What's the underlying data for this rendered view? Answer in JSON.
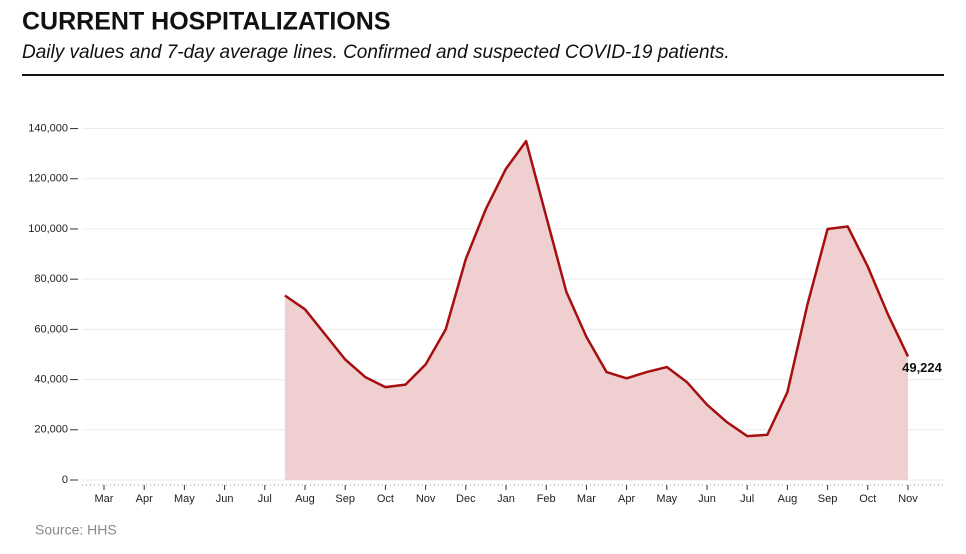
{
  "chart_data": {
    "type": "area-line",
    "title": "CURRENT HOSPITALIZATIONS",
    "subtitle": "Daily values and 7-day average lines. Confirmed and suspected COVID-19 patients.",
    "source": "Source: HHS",
    "categories": [
      "Mar",
      null,
      "Apr",
      null,
      "May",
      null,
      "Jun",
      null,
      "Jul",
      null,
      "Aug",
      null,
      "Sep",
      null,
      "Oct",
      null,
      "Nov",
      null,
      "Dec",
      null,
      "Jan",
      null,
      "Feb",
      null,
      "Mar",
      null,
      "Apr",
      null,
      "May",
      null,
      "Jun",
      null,
      "Jul",
      null,
      "Aug",
      null,
      "Sep",
      null,
      "Oct",
      null,
      "Nov"
    ],
    "series": [
      {
        "name": "7-day average",
        "color": "#a50f0f",
        "fill": "#efcfcf",
        "values": [
          null,
          null,
          null,
          null,
          null,
          null,
          null,
          null,
          null,
          73500,
          68000,
          58000,
          48000,
          41000,
          37000,
          38000,
          46000,
          60000,
          88000,
          108000,
          124000,
          135000,
          105000,
          75000,
          57000,
          43000,
          40500,
          43000,
          45000,
          39000,
          30000,
          23000,
          17500,
          18000,
          35000,
          70000,
          100000,
          101000,
          85000,
          66000,
          49224
        ],
        "value_labels": [
          null,
          null,
          null,
          null,
          null,
          null,
          null,
          null,
          null,
          null,
          null,
          null,
          null,
          null,
          null,
          null,
          null,
          null,
          null,
          null,
          null,
          null,
          null,
          null,
          null,
          null,
          null,
          null,
          null,
          null,
          null,
          null,
          null,
          null,
          null,
          null,
          null,
          null,
          null,
          null,
          "49,224"
        ]
      }
    ],
    "ylim": [
      0,
      145000
    ],
    "yticks": [
      0,
      {
        "value": 20000,
        "label": "20,000"
      },
      {
        "value": 40000,
        "label": "40,000"
      },
      {
        "value": 60000,
        "label": "60,000"
      },
      {
        "value": 80000,
        "label": "80,000"
      },
      {
        "value": 100000,
        "label": "100,000"
      },
      {
        "value": 120000,
        "label": "120,000"
      },
      {
        "value": 140000,
        "label": "140,000"
      }
    ],
    "grid": true
  }
}
